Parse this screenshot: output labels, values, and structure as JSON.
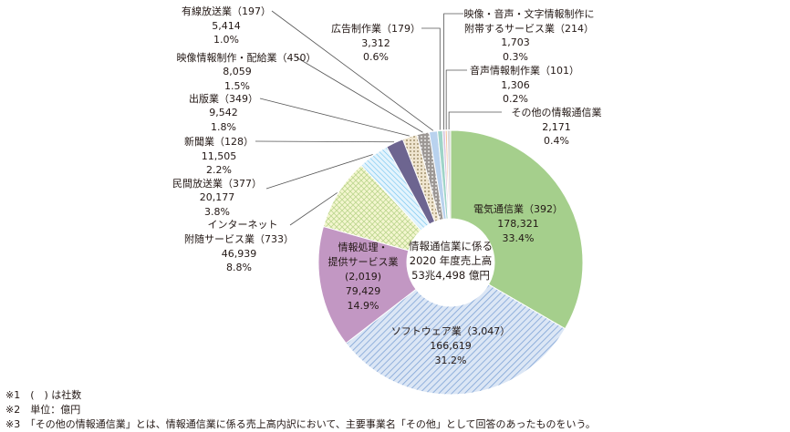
{
  "chart_data": {
    "type": "pie",
    "center_label": [
      "情報通信業に係る",
      "2020 年度売上高",
      "53兆4,498 億円"
    ],
    "slices": [
      {
        "name": "電気通信業",
        "count": "(392)",
        "value": 178321,
        "value_label": "178,321",
        "pct": "33.4%",
        "color": "#a5cf8c",
        "pattern": "solid"
      },
      {
        "name": "ソフトウェア業",
        "count": "(3,047)",
        "value": 166619,
        "value_label": "166,619",
        "pct": "31.2%",
        "color": "#c8d8ee",
        "pattern": "hatch-blue"
      },
      {
        "name": "情報処理・提供サービス業",
        "count": "(2,019)",
        "value": 79429,
        "value_label": "79,429",
        "pct": "14.9%",
        "color": "#c297c3",
        "pattern": "solid"
      },
      {
        "name": "インターネット附随サービス業",
        "count": "(733)",
        "value": 46939,
        "value_label": "46,939",
        "pct": "8.8%",
        "color": "#eef2b8",
        "pattern": "grid-green"
      },
      {
        "name": "民間放送業",
        "count": "(377)",
        "value": 20177,
        "value_label": "20,177",
        "pct": "3.8%",
        "color": "#cfeafb",
        "pattern": "hatch-cyan"
      },
      {
        "name": "新聞業",
        "count": "(128)",
        "value": 11505,
        "value_label": "11,505",
        "pct": "2.2%",
        "color": "#6d6590",
        "pattern": "solid"
      },
      {
        "name": "出版業",
        "count": "(349)",
        "value": 9542,
        "value_label": "9,542",
        "pct": "1.8%",
        "color": "#e8dcc0",
        "pattern": "dots"
      },
      {
        "name": "映像情報制作・配給業",
        "count": "(450)",
        "value": 8059,
        "value_label": "8,059",
        "pct": "1.5%",
        "color": "#a6a2a0",
        "pattern": "dots-white"
      },
      {
        "name": "有線放送業",
        "count": "(197)",
        "value": 5414,
        "value_label": "5,414",
        "pct": "1.0%",
        "color": "#b9d2ee",
        "pattern": "solid"
      },
      {
        "name": "広告制作業",
        "count": "(179)",
        "value": 3312,
        "value_label": "3,312",
        "pct": "0.6%",
        "color": "#9fd4c8",
        "pattern": "solid"
      },
      {
        "name": "映像・音声・文字情報制作に附帯するサービス業",
        "count": "(214)",
        "value": 1703,
        "value_label": "1,703",
        "pct": "0.3%",
        "color": "#d7c3de",
        "pattern": "solid"
      },
      {
        "name": "音声情報制作業",
        "count": "(101)",
        "value": 1306,
        "value_label": "1,306",
        "pct": "0.2%",
        "color": "#f4c39d",
        "pattern": "solid"
      },
      {
        "name": "その他の情報通信業",
        "count": "",
        "value": 2171,
        "value_label": "2,171",
        "pct": "0.4%",
        "color": "#d9d9d9",
        "pattern": "solid"
      }
    ]
  },
  "labels": {
    "denki": {
      "l1": "電気通信業（392）",
      "l2": "178,321",
      "l3": "33.4%"
    },
    "software": {
      "l1": "ソフトウェア業（3,047）",
      "l2": "166,619",
      "l3": "31.2%"
    },
    "joho": {
      "l1": "情報処理・",
      "l2": "提供サービス業",
      "l3": "(2,019)",
      "l4": "79,429",
      "l5": "14.9%"
    },
    "internet": {
      "l1": "インターネット",
      "l2": "附随サービス業（733）",
      "l3": "46,939",
      "l4": "8.8%"
    },
    "minkan": {
      "l1": "民間放送業（377）",
      "l2": "20,177",
      "l3": "3.8%"
    },
    "shinbun": {
      "l1": "新聞業（128）",
      "l2": "11,505",
      "l3": "2.2%"
    },
    "shuppan": {
      "l1": "出版業（349）",
      "l2": "9,542",
      "l3": "1.8%"
    },
    "eizo": {
      "l1": "映像情報制作・配給業（450）",
      "l2": "8,059",
      "l3": "1.5%"
    },
    "yusen": {
      "l1": "有線放送業（197）",
      "l2": "5,414",
      "l3": "1.0%"
    },
    "kokoku": {
      "l1": "広告制作業（179）",
      "l2": "3,312",
      "l3": "0.6%"
    },
    "fuzui": {
      "l1": "映像・音声・文字情報制作に",
      "l2": "附帯するサービス業（214）",
      "l3": "1,703",
      "l4": "0.3%"
    },
    "onsei": {
      "l1": "音声情報制作業（101）",
      "l2": "1,306",
      "l3": "0.2%"
    },
    "sonota": {
      "l1": "その他の情報通信業",
      "l2": "2,171",
      "l3": "0.4%"
    }
  },
  "notes": {
    "n1": "※1　(　) は社数",
    "n2": "※2　単位：億円",
    "n3": "※3　「その他の情報通信業」とは、情報通信業に係る売上高内訳において、主要事業名「その他」として回答のあったものをいう。"
  }
}
